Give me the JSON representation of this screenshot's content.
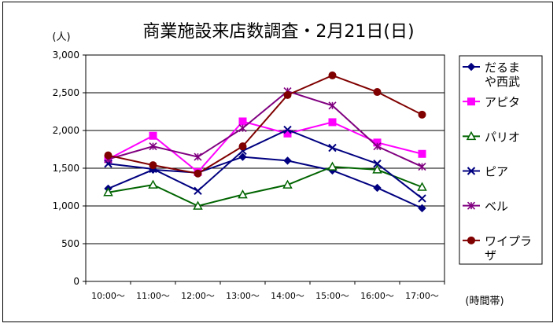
{
  "chart_data": {
    "type": "line",
    "title": "商業施設来店数調査・2月21日(日)",
    "ylabel": "(人)",
    "xlabel": "(時間帯)",
    "categories": [
      "10:00～",
      "11:00～",
      "12:00～",
      "13:00～",
      "14:00～",
      "15:00～",
      "16:00～",
      "17:00～"
    ],
    "ylim": [
      0,
      3000
    ],
    "yticks": [
      0,
      500,
      1000,
      1500,
      2000,
      2500,
      3000
    ],
    "ytick_labels": [
      "0",
      "500",
      "1,000",
      "1,500",
      "2,000",
      "2,500",
      "3,000"
    ],
    "grid": true,
    "legend": "right",
    "series": [
      {
        "name": "だるまや西武",
        "name_lines": [
          "だるま",
          "や西武"
        ],
        "color": "#000080",
        "marker": "diamond",
        "values": [
          1230,
          1480,
          1440,
          1650,
          1600,
          1470,
          1240,
          970
        ]
      },
      {
        "name": "アピタ",
        "name_lines": [
          "アピタ"
        ],
        "color": "#ff00ff",
        "marker": "square",
        "values": [
          1620,
          1930,
          1450,
          2120,
          1960,
          2110,
          1840,
          1690
        ]
      },
      {
        "name": "パリオ",
        "name_lines": [
          "パリオ"
        ],
        "color": "#006400",
        "marker": "triangle",
        "values": [
          1180,
          1280,
          1000,
          1150,
          1280,
          1520,
          1480,
          1250
        ]
      },
      {
        "name": "ピア",
        "name_lines": [
          "ピア"
        ],
        "color": "#000080",
        "marker": "x",
        "values": [
          1560,
          1490,
          1200,
          1730,
          2010,
          1770,
          1560,
          1100
        ]
      },
      {
        "name": "ベル",
        "name_lines": [
          "ベル"
        ],
        "color": "#800080",
        "marker": "asterisk",
        "values": [
          1620,
          1790,
          1650,
          2030,
          2520,
          2330,
          1790,
          1520
        ]
      },
      {
        "name": "ワイプラザ",
        "name_lines": [
          "ワイプラ",
          "ザ"
        ],
        "color": "#800000",
        "marker": "circle",
        "values": [
          1670,
          1540,
          1430,
          1790,
          2470,
          2730,
          2510,
          2210
        ]
      }
    ]
  }
}
